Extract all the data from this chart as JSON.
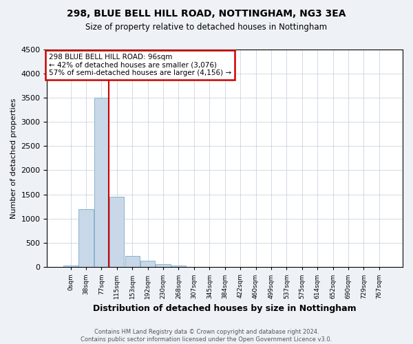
{
  "title": "298, BLUE BELL HILL ROAD, NOTTINGHAM, NG3 3EA",
  "subtitle": "Size of property relative to detached houses in Nottingham",
  "xlabel": "Distribution of detached houses by size in Nottingham",
  "ylabel": "Number of detached properties",
  "footer": "Contains HM Land Registry data © Crown copyright and database right 2024.\nContains public sector information licensed under the Open Government Licence v3.0.",
  "annotation_line1": "298 BLUE BELL HILL ROAD: 96sqm",
  "annotation_line2": "← 42% of detached houses are smaller (3,076)",
  "annotation_line3": "57% of semi-detached houses are larger (4,156) →",
  "bar_color": "#c8d8e8",
  "bar_edge_color": "#7aaac8",
  "vline_color": "#cc0000",
  "annotation_box_edge_color": "#cc0000",
  "ylim": [
    0,
    4500
  ],
  "yticks": [
    0,
    500,
    1000,
    1500,
    2000,
    2500,
    3000,
    3500,
    4000,
    4500
  ],
  "bin_labels": [
    "0sqm",
    "38sqm",
    "77sqm",
    "115sqm",
    "153sqm",
    "192sqm",
    "230sqm",
    "268sqm",
    "307sqm",
    "345sqm",
    "384sqm",
    "422sqm",
    "460sqm",
    "499sqm",
    "537sqm",
    "575sqm",
    "614sqm",
    "652sqm",
    "690sqm",
    "729sqm",
    "767sqm"
  ],
  "bar_heights": [
    30,
    1200,
    3500,
    1450,
    230,
    130,
    60,
    30,
    10,
    5,
    3,
    2,
    1,
    0,
    0,
    0,
    0,
    0,
    0,
    0,
    0
  ],
  "vline_bin_index": 2.47,
  "background_color": "#eef2f7",
  "plot_background": "#ffffff",
  "grid_color": "#c0ccda"
}
